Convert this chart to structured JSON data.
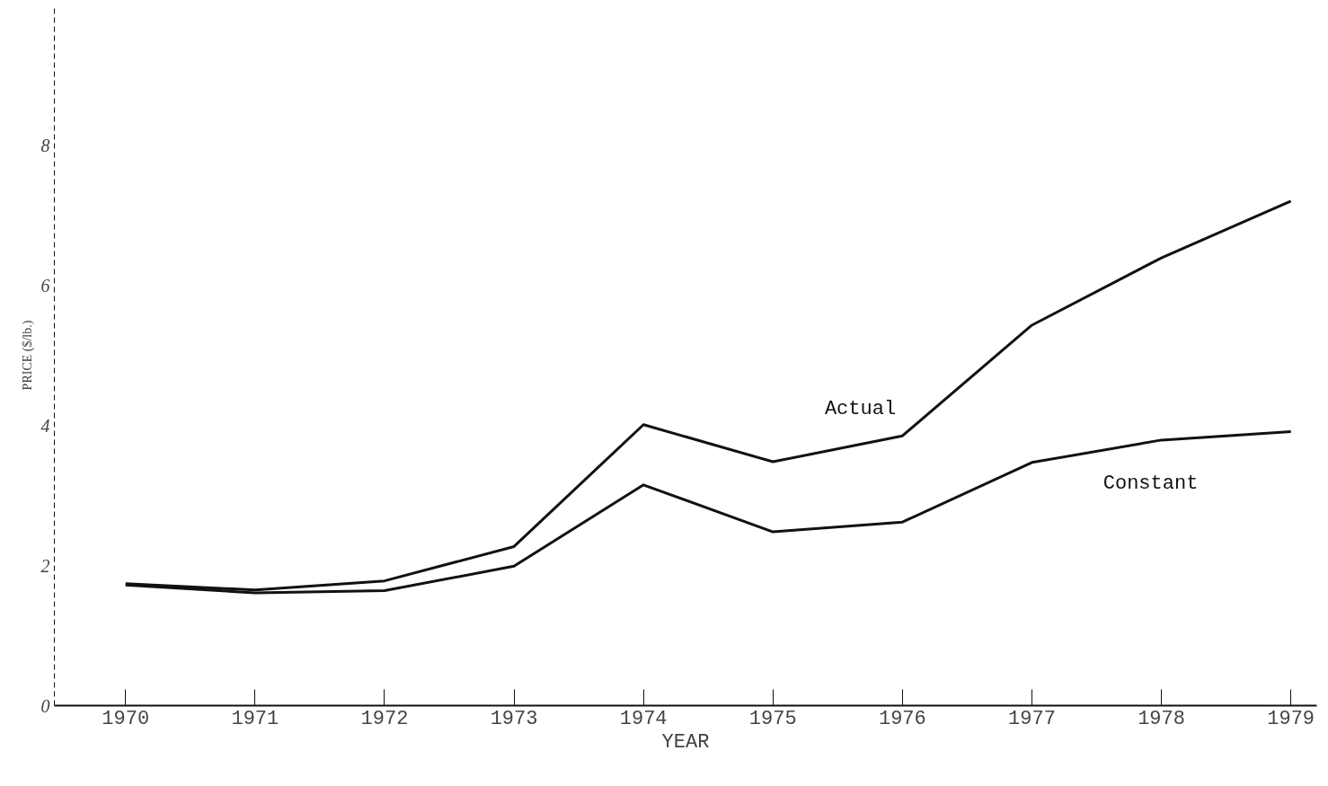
{
  "chart_data": {
    "type": "line",
    "xlabel": "YEAR",
    "ylabel": "PRICE ($/lb.)",
    "x": [
      1970,
      1971,
      1972,
      1973,
      1974,
      1975,
      1976,
      1977,
      1978,
      1979
    ],
    "series": [
      {
        "name": "Actual",
        "color": "#111111",
        "values": [
          1.74,
          1.65,
          1.78,
          2.27,
          4.01,
          3.48,
          3.85,
          5.43,
          6.39,
          7.2
        ]
      },
      {
        "name": "Constant",
        "color": "#111111",
        "values": [
          1.72,
          1.61,
          1.64,
          1.99,
          3.15,
          2.48,
          2.62,
          3.47,
          3.79,
          3.91
        ]
      }
    ],
    "xlim": [
      1969.45,
      1979.2
    ],
    "ylim": [
      0,
      10
    ],
    "xticks": [
      1970,
      1971,
      1972,
      1973,
      1974,
      1975,
      1976,
      1977,
      1978,
      1979
    ],
    "yticks": [
      0,
      2,
      4,
      6,
      8
    ],
    "grid": false,
    "legend": false,
    "marker": "none",
    "line_style": "solid"
  }
}
